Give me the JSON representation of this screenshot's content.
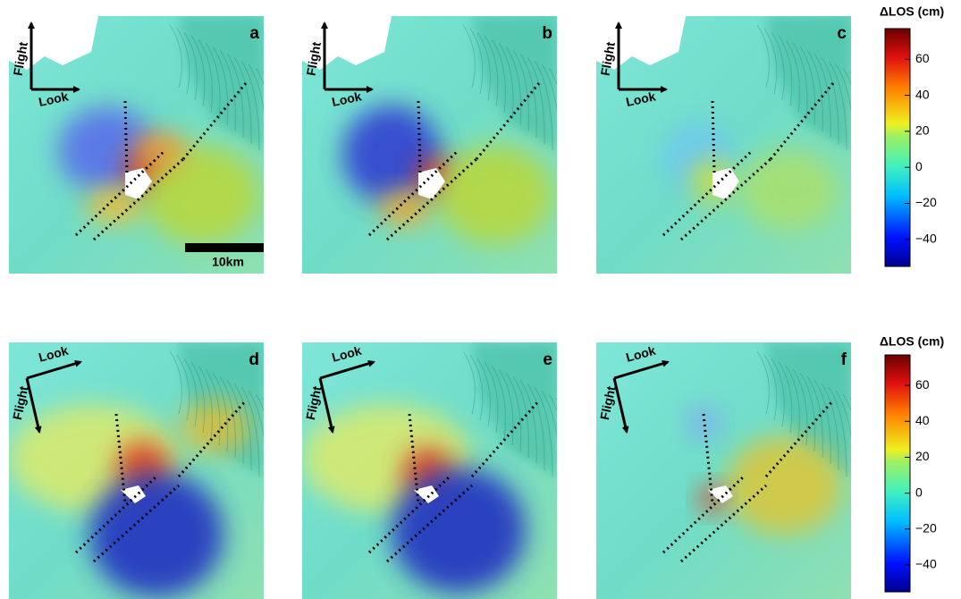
{
  "panels": [
    {
      "label": "a",
      "flight": "Flight",
      "look": "Look",
      "scale_bar": "10km"
    },
    {
      "label": "b",
      "flight": "Flight",
      "look": "Look"
    },
    {
      "label": "c",
      "flight": "Flight",
      "look": "Look"
    },
    {
      "label": "d",
      "flight": "Flight",
      "look": "Look"
    },
    {
      "label": "e",
      "flight": "Flight",
      "look": "Look"
    },
    {
      "label": "f",
      "flight": "Flight",
      "look": "Look"
    }
  ],
  "colorbars": [
    {
      "title": "ΔLOS (cm)",
      "lim": [
        -55,
        77
      ],
      "ticks": [
        60,
        40,
        20,
        0,
        {
          "value": -20,
          "label": "−20"
        },
        {
          "value": -40,
          "label": "−40"
        }
      ]
    },
    {
      "title": "ΔLOS (cm)",
      "lim": [
        -55,
        77
      ],
      "ticks": [
        60,
        40,
        20,
        0,
        {
          "value": -20,
          "label": "−20"
        },
        {
          "value": -40,
          "label": "−40"
        }
      ]
    }
  ]
}
